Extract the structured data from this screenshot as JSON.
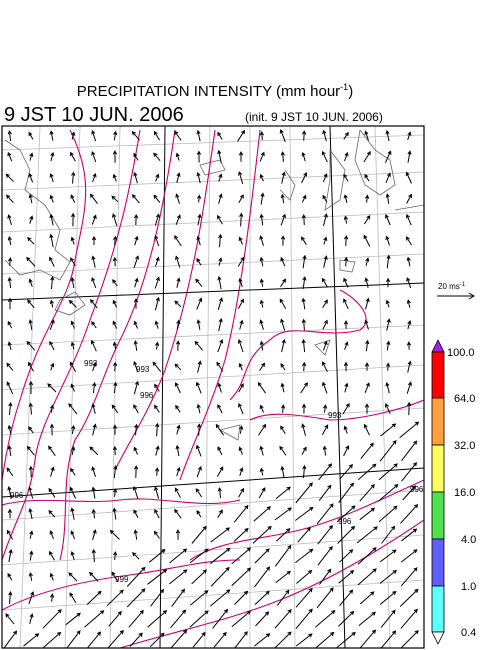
{
  "header": {
    "title": "PRECIPITATION INTENSITY (mm hour",
    "title_superscript": "-1",
    "title_close": ")",
    "valid_time": "9 JST 10 JUN. 2006",
    "init_time": "(init. 9 JST 10 JUN. 2006)"
  },
  "wind_scale": {
    "label": "20 ms",
    "superscript": "-1"
  },
  "colorbar": {
    "levels": [
      "100.0",
      "64.0",
      "32.0",
      "16.0",
      "4.0",
      "1.0",
      "0.4"
    ]
  },
  "contour_labels": [
    "993",
    "993",
    "996",
    "996",
    "993",
    "996",
    "996",
    "999"
  ]
}
